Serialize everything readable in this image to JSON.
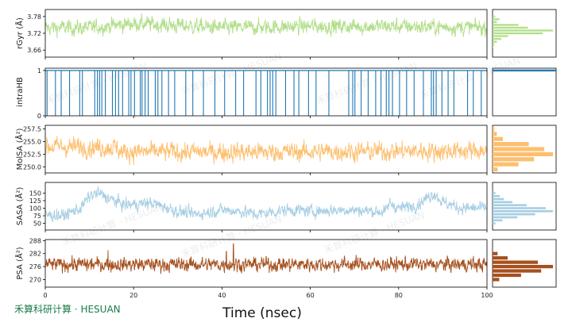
{
  "chart_data": {
    "type": "line",
    "x_label": "Time (nsec)",
    "x_range": [
      0,
      100
    ],
    "x_ticks": [
      0,
      20,
      40,
      60,
      80,
      100
    ],
    "watermark": "禾算科研计算 · HESUAN",
    "panels": [
      {
        "name": "rGyr",
        "ylabel": "rGyr (Å)",
        "color": "#b2df8a",
        "y_range": [
          3.635,
          3.805
        ],
        "y_ticks": [
          3.66,
          3.72,
          3.78
        ],
        "y_tick_labels": [
          "3.66",
          "3.72",
          "3.78"
        ],
        "trace": {
          "x_start": 0,
          "x_end": 100,
          "n_points": 1500,
          "baseline": [
            [
              0,
              3.74
            ],
            [
              10,
              3.74
            ],
            [
              20,
              3.755
            ],
            [
              40,
              3.74
            ],
            [
              60,
              3.745
            ],
            [
              80,
              3.745
            ],
            [
              100,
              3.74
            ]
          ],
          "noise_amplitude": 0.022,
          "clip": [
            3.645,
            3.8
          ]
        },
        "histogram": {
          "bins": [
            3.78,
            3.77,
            3.76,
            3.75,
            3.74,
            3.73,
            3.72,
            3.71,
            3.7,
            3.69,
            3.68,
            3.67
          ],
          "counts": [
            3,
            8,
            5,
            30,
            41,
            70,
            58,
            18,
            10,
            5,
            2,
            1
          ]
        }
      },
      {
        "name": "intraHB",
        "ylabel": "intraHB",
        "color": "#1f78b4",
        "y_range": [
          0,
          1.05
        ],
        "y_ticks": [
          0,
          1
        ],
        "y_tick_labels": [
          "0",
          "1"
        ],
        "trace": {
          "mostly_value": 1,
          "drop_times_nsec": [
            0.4,
            2.3,
            3.6,
            5.5,
            7.8,
            8.4,
            11.2,
            11.8,
            12.3,
            12.8,
            13.6,
            15.2,
            15.9,
            16.6,
            17.5,
            18.9,
            19.4,
            20.2,
            21.5,
            21.9,
            22.6,
            23.3,
            24.9,
            25.5,
            26.4,
            27.9,
            29.3,
            31.8,
            33.4,
            35.8,
            38.4,
            40.6,
            43.1,
            44.9,
            47.7,
            48.8,
            50.3,
            50.9,
            51.5,
            52.2,
            54.4,
            56.3,
            57.4,
            59.6,
            61.3,
            64.2,
            68.7,
            69.6,
            70.1,
            71.5,
            73.1,
            74.8,
            76.0,
            77.2,
            77.8,
            78.6,
            80.2,
            81.8,
            83.5,
            85.6,
            87.4,
            87.9,
            88.5,
            89.8,
            91.2,
            92.5,
            95.6,
            96.9,
            98.7
          ]
        },
        "histogram": {
          "value": 1,
          "fraction": 1.0
        }
      },
      {
        "name": "MolSA",
        "ylabel": "MolSA (Å²)",
        "color": "#fdbf6f",
        "y_range": [
          248.8,
          258.2
        ],
        "y_ticks": [
          250.0,
          252.5,
          255.0,
          257.5
        ],
        "y_tick_labels": [
          "250.0",
          "252.5",
          "255.0",
          "257.5"
        ],
        "trace": {
          "x_start": 0,
          "x_end": 100,
          "n_points": 1500,
          "baseline": [
            [
              0,
              254.0
            ],
            [
              16,
              253.8
            ],
            [
              17,
              253.0
            ],
            [
              40,
              252.9
            ],
            [
              60,
              253.0
            ],
            [
              80,
              253.1
            ],
            [
              100,
              253.2
            ]
          ],
          "noise_amplitude": 1.5,
          "clip": [
            249.6,
            257.9
          ]
        },
        "histogram": {
          "bins": [
            257.5,
            256.5,
            255.5,
            254.5,
            253.5,
            252.5,
            251.5,
            250.5,
            249.5
          ],
          "counts": [
            2,
            5,
            12,
            42,
            60,
            70,
            48,
            30,
            6
          ]
        }
      },
      {
        "name": "SASA",
        "ylabel": "SASA (Å²)",
        "color": "#a6cee3",
        "y_range": [
          28,
          185
        ],
        "y_ticks": [
          50,
          75,
          100,
          125,
          150
        ],
        "y_tick_labels": [
          "50",
          "75",
          "100",
          "125",
          "150"
        ],
        "trace": {
          "x_start": 0,
          "x_end": 100,
          "n_points": 1500,
          "baseline": [
            [
              0,
              78
            ],
            [
              4,
              75
            ],
            [
              8,
              100
            ],
            [
              10,
              140
            ],
            [
              12,
              150
            ],
            [
              14,
              135
            ],
            [
              18,
              110
            ],
            [
              24,
              118
            ],
            [
              30,
              90
            ],
            [
              34,
              80
            ],
            [
              40,
              95
            ],
            [
              44,
              90
            ],
            [
              48,
              80
            ],
            [
              55,
              95
            ],
            [
              60,
              90
            ],
            [
              68,
              95
            ],
            [
              75,
              90
            ],
            [
              77,
              88
            ],
            [
              78,
              118
            ],
            [
              80,
              100
            ],
            [
              84,
              110
            ],
            [
              86,
              130
            ],
            [
              88,
              150
            ],
            [
              90,
              120
            ],
            [
              94,
              100
            ],
            [
              100,
              100
            ]
          ],
          "noise_amplitude": 16,
          "clip": [
            35,
            180
          ]
        },
        "histogram": {
          "bins": [
            160,
            150,
            140,
            130,
            120,
            110,
            100,
            90,
            80,
            70,
            60,
            50
          ],
          "counts": [
            2,
            4,
            10,
            16,
            28,
            48,
            75,
            85,
            60,
            35,
            14,
            4
          ]
        }
      },
      {
        "name": "PSA",
        "ylabel": "PSA (Å²)",
        "color": "#a6501e",
        "y_range": [
          266.5,
          288.5
        ],
        "y_ticks": [
          270,
          276,
          282,
          288
        ],
        "y_tick_labels": [
          "270",
          "276",
          "282",
          "288"
        ],
        "trace": {
          "x_start": 0,
          "x_end": 100,
          "n_points": 1500,
          "baseline": [
            [
              0,
              277
            ],
            [
              50,
              277
            ],
            [
              100,
              277
            ]
          ],
          "noise_amplitude": 2.6,
          "clip": [
            268.5,
            284
          ],
          "spikes": [
            [
              42.6,
              286.5
            ],
            [
              41.0,
              283.0
            ],
            [
              14.2,
              283.6
            ]
          ]
        },
        "histogram": {
          "bins": [
            282,
            280,
            278,
            276,
            274,
            272,
            270
          ],
          "counts": [
            6,
            18,
            54,
            72,
            58,
            34,
            8
          ]
        }
      }
    ]
  }
}
